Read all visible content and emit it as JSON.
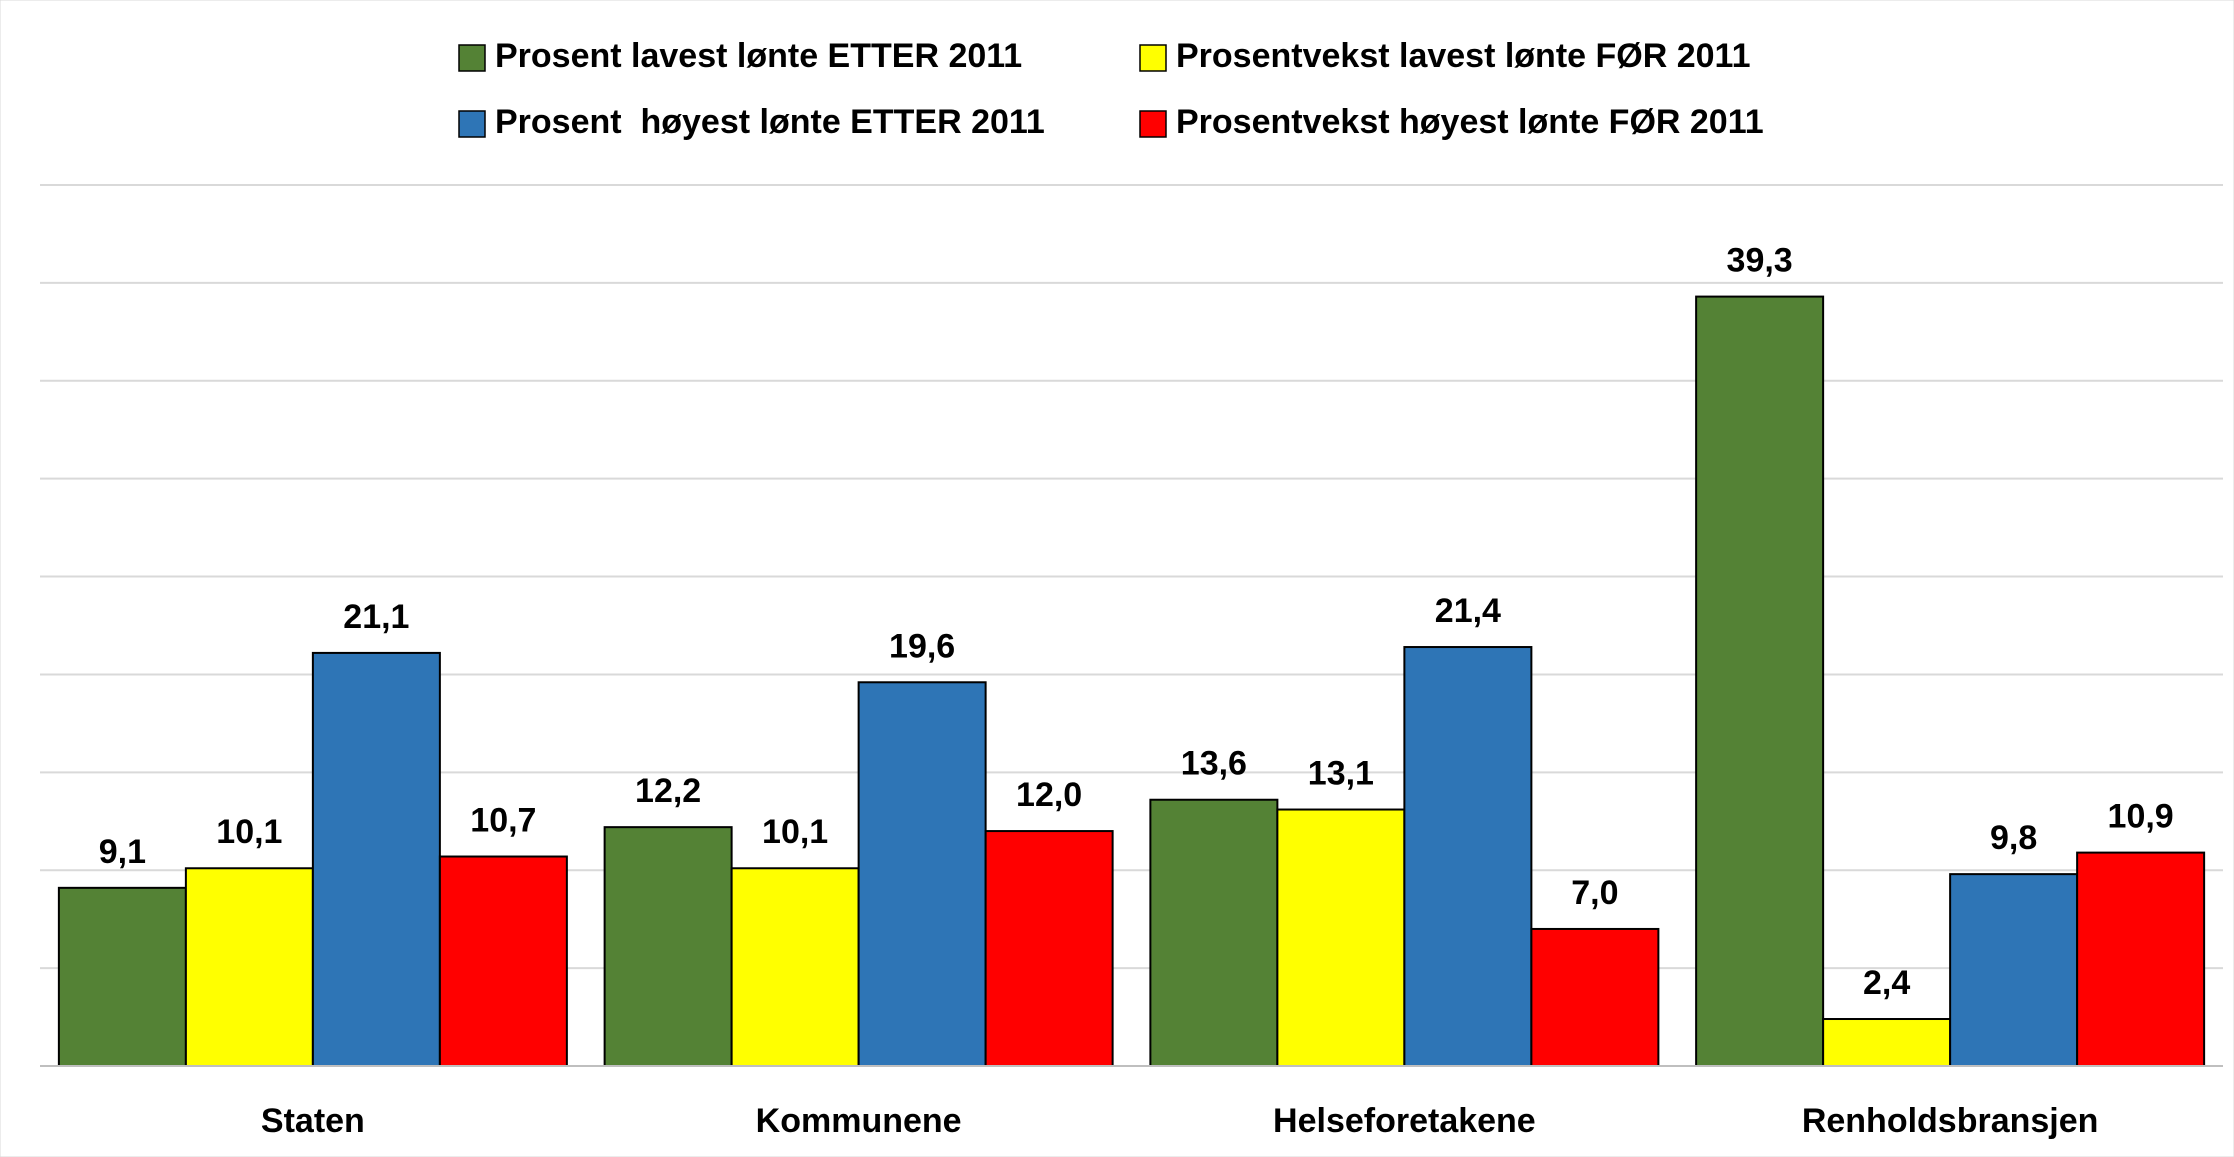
{
  "chart_data": {
    "type": "bar",
    "categories": [
      "Staten",
      "Kommunene",
      "Helseforetakene",
      "Renholdsbransjen"
    ],
    "series": [
      {
        "name": "Prosent lavest lønte ETTER 2011",
        "color": "#548235",
        "values": [
          9.1,
          12.2,
          13.6,
          39.3
        ],
        "value_labels": [
          "9,1",
          "12,2",
          "13,6",
          "39,3"
        ]
      },
      {
        "name": "Prosentvekst lavest lønte FØR 2011",
        "color": "#ffff00",
        "values": [
          10.1,
          10.1,
          13.1,
          2.4
        ],
        "value_labels": [
          "10,1",
          "10,1",
          "13,1",
          "2,4"
        ]
      },
      {
        "name": "Prosent  høyest lønte ETTER 2011",
        "color": "#2e75b6",
        "values": [
          21.1,
          19.6,
          21.4,
          9.8
        ],
        "value_labels": [
          "21,1",
          "19,6",
          "21,4",
          "9,8"
        ]
      },
      {
        "name": "Prosentvekst høyest lønte FØR 2011",
        "color": "#ff0000",
        "values": [
          10.7,
          12.0,
          7.0,
          10.9
        ],
        "value_labels": [
          "10,7",
          "12,0",
          "7,0",
          "10,9"
        ]
      }
    ],
    "ylim": [
      0,
      45
    ],
    "yticks": [
      0,
      5,
      10,
      15,
      20,
      25,
      30,
      35,
      40,
      45
    ],
    "grid": true
  }
}
